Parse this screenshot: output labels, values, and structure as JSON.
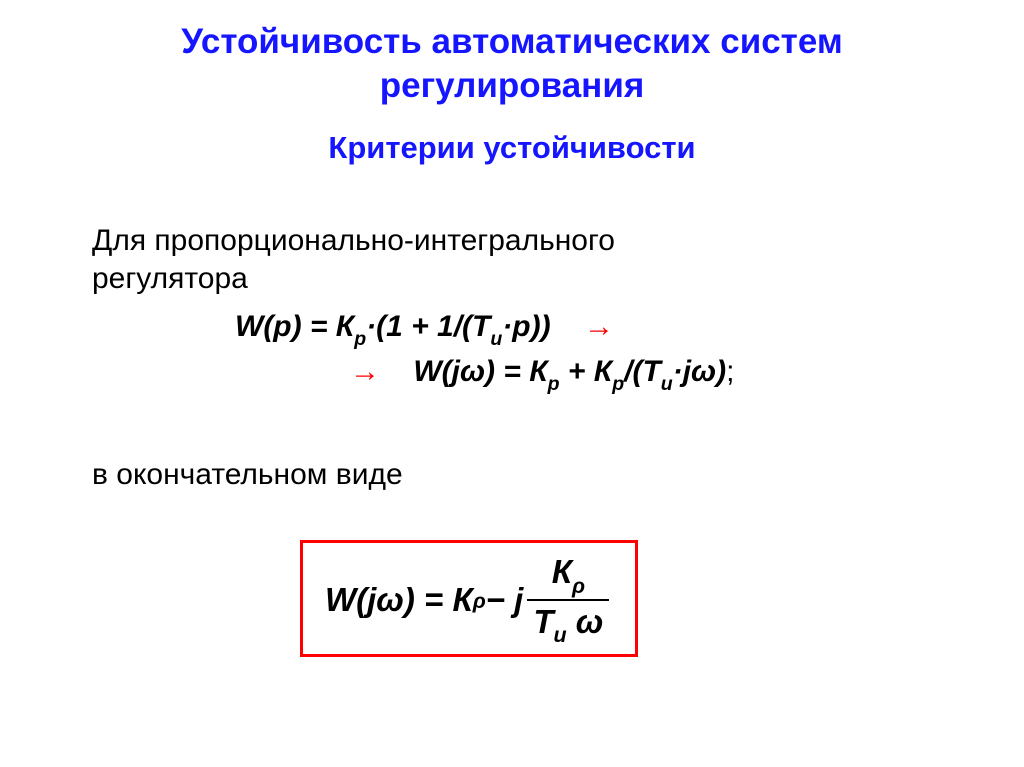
{
  "colors": {
    "title": "#1515ff",
    "subtitle": "#1515ff",
    "body": "#000000",
    "arrow": "#ff0000",
    "box_border": "#ff0000",
    "frac_bar": "#000000",
    "background": "#ffffff"
  },
  "fontsizes": {
    "title": 35,
    "subtitle": 31,
    "body": 30,
    "equation": 30,
    "boxed": 33
  },
  "title_line1": "Устойчивость автоматических систем",
  "title_line2": "регулирования",
  "subtitle": "Критерии устойчивости",
  "para1_line1": "Для пропорционально-интегрального",
  "para1_line2": "регулятора",
  "eq1": {
    "prefix": "W(p) = К",
    "sub1": "р",
    "mid1": "·(1 + 1/(Т",
    "sub2": "и",
    "suffix": "·р))",
    "arrow": "→"
  },
  "eq2": {
    "arrow": "→",
    "prefix": "W(jω) = К",
    "sub1": "р",
    "mid1": " + К",
    "sub2": "р",
    "mid2": "/(Т",
    "sub3": "и",
    "suffix": "·jω)",
    "semicolon": ";"
  },
  "para2": "в окончательном виде",
  "boxed": {
    "prefix": "W(jω) = К",
    "sub1": "ρ",
    "minus": " − j ",
    "num_main": "К",
    "num_sub": "ρ",
    "den_t": "Т",
    "den_sub": "и",
    "den_omega": " ω"
  }
}
